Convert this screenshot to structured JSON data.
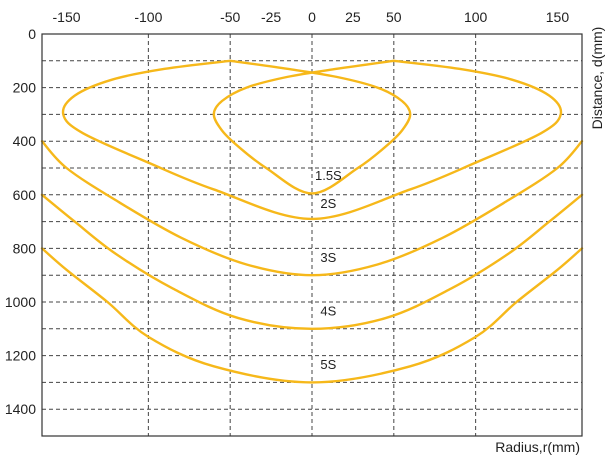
{
  "chart_data": {
    "type": "line",
    "xlabel": "Radius,r(mm)",
    "ylabel": "Distance, d(mm)",
    "x_axis_position": "top",
    "y_inverted": true,
    "xlim": [
      -165,
      165
    ],
    "ylim": [
      0,
      1500
    ],
    "x_ticks": [
      -150,
      -100,
      -50,
      -25,
      0,
      25,
      50,
      100,
      150
    ],
    "x_gridlines": [
      -100,
      -50,
      0,
      50,
      100
    ],
    "y_ticks": [
      0,
      200,
      400,
      600,
      800,
      1000,
      1200,
      1400
    ],
    "y_gridlines": [
      100,
      200,
      300,
      400,
      500,
      600,
      700,
      800,
      900,
      1000,
      1100,
      1200,
      1300,
      1400
    ],
    "grid": true,
    "line_color": "#F6B81A",
    "series": [
      {
        "name": "1.5S",
        "points": [
          [
            50,
            100
          ],
          [
            15,
            130
          ],
          [
            -15,
            160
          ],
          [
            -40,
            200
          ],
          [
            -55,
            250
          ],
          [
            -60,
            300
          ],
          [
            -55,
            360
          ],
          [
            -45,
            420
          ],
          [
            -28,
            500
          ],
          [
            0,
            595
          ],
          [
            28,
            500
          ],
          [
            45,
            420
          ],
          [
            55,
            360
          ],
          [
            60,
            300
          ],
          [
            55,
            250
          ],
          [
            40,
            200
          ],
          [
            15,
            160
          ],
          [
            -15,
            130
          ],
          [
            -50,
            100
          ]
        ]
      },
      {
        "name": "2S",
        "points": [
          [
            -50,
            100
          ],
          [
            -90,
            130
          ],
          [
            -122,
            170
          ],
          [
            -145,
            230
          ],
          [
            -152,
            300
          ],
          [
            -140,
            370
          ],
          [
            -100,
            480
          ],
          [
            -60,
            580
          ],
          [
            0,
            690
          ],
          [
            60,
            580
          ],
          [
            100,
            480
          ],
          [
            140,
            370
          ],
          [
            152,
            300
          ],
          [
            145,
            230
          ],
          [
            122,
            170
          ],
          [
            90,
            130
          ],
          [
            50,
            100
          ]
        ]
      },
      {
        "name": "3S",
        "points": [
          [
            -165,
            400
          ],
          [
            -150,
            500
          ],
          [
            -120,
            620
          ],
          [
            -80,
            760
          ],
          [
            -40,
            860
          ],
          [
            0,
            900
          ],
          [
            40,
            860
          ],
          [
            80,
            760
          ],
          [
            120,
            620
          ],
          [
            150,
            500
          ],
          [
            165,
            400
          ]
        ]
      },
      {
        "name": "4S",
        "points": [
          [
            -165,
            600
          ],
          [
            -145,
            700
          ],
          [
            -120,
            820
          ],
          [
            -85,
            950
          ],
          [
            -45,
            1060
          ],
          [
            0,
            1100
          ],
          [
            45,
            1060
          ],
          [
            85,
            950
          ],
          [
            120,
            820
          ],
          [
            145,
            700
          ],
          [
            165,
            600
          ]
        ]
      },
      {
        "name": "5S",
        "points": [
          [
            -165,
            800
          ],
          [
            -150,
            880
          ],
          [
            -125,
            1000
          ],
          [
            -100,
            1130
          ],
          [
            -60,
            1240
          ],
          [
            0,
            1300
          ],
          [
            60,
            1240
          ],
          [
            100,
            1130
          ],
          [
            125,
            1000
          ],
          [
            150,
            880
          ],
          [
            165,
            800
          ]
        ]
      }
    ],
    "labels": [
      {
        "text": "1.5S",
        "x": 10,
        "y": 545
      },
      {
        "text": "2S",
        "x": 10,
        "y": 650
      },
      {
        "text": "3S",
        "x": 10,
        "y": 850
      },
      {
        "text": "4S",
        "x": 10,
        "y": 1050
      },
      {
        "text": "5S",
        "x": 10,
        "y": 1250
      }
    ]
  }
}
